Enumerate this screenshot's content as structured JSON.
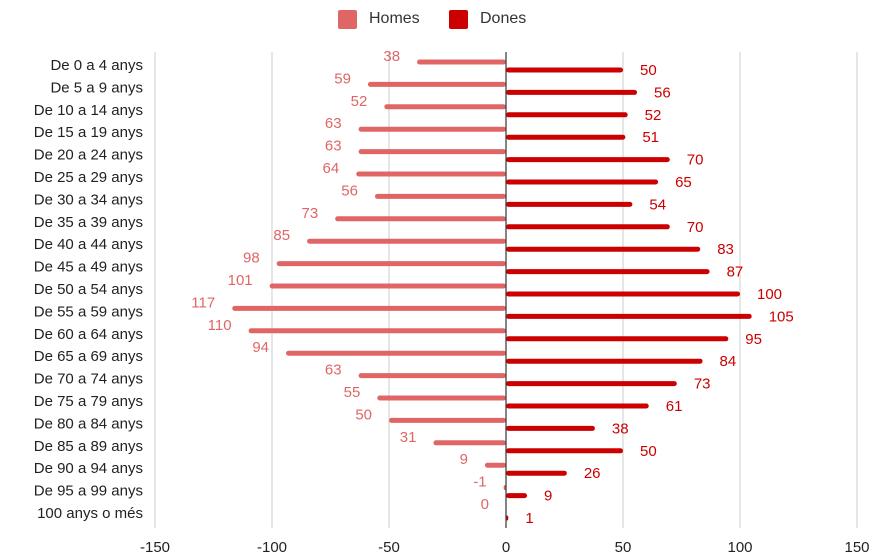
{
  "colors": {
    "homes": "#e06666",
    "dones": "#cc0000",
    "grid": "#cccccc",
    "axis": "#333333",
    "text": "#222222"
  },
  "chart_data": {
    "type": "bar",
    "orientation": "horizontal",
    "legend_position": "top",
    "grid": true,
    "xlim": [
      -150,
      150
    ],
    "xticks": [
      -150,
      -100,
      -50,
      0,
      50,
      100,
      150
    ],
    "categories": [
      "De 0 a 4 anys",
      "De 5 a 9 anys",
      "De 10 a 14 anys",
      "De 15 a 19 anys",
      "De 20 a 24 anys",
      "De 25 a 29 anys",
      "De 30 a 34 anys",
      "De 35 a 39 anys",
      "De 40 a 44 anys",
      "De 45 a 49 anys",
      "De 50 a 54 anys",
      "De 55 a 59 anys",
      "De 60 a 64 anys",
      "De 65 a 69 anys",
      "De 70 a 74 anys",
      "De 75 a 79 anys",
      "De 80 a 84 anys",
      "De 85 a 89 anys",
      "De 90 a 94 anys",
      "De 95 a 99 anys",
      "100 anys o més"
    ],
    "series": [
      {
        "name": "Homes",
        "values": [
          -38,
          -59,
          -52,
          -63,
          -63,
          -64,
          -56,
          -73,
          -85,
          -98,
          -101,
          -117,
          -110,
          -94,
          -63,
          -55,
          -50,
          -31,
          -9,
          -1,
          0
        ],
        "labels": [
          "38",
          "59",
          "52",
          "63",
          "63",
          "64",
          "56",
          "73",
          "85",
          "98",
          "101",
          "117",
          "110",
          "94",
          "63",
          "55",
          "50",
          "31",
          "9",
          "-1",
          "0"
        ]
      },
      {
        "name": "Dones",
        "values": [
          50,
          56,
          52,
          51,
          70,
          65,
          54,
          70,
          83,
          87,
          100,
          105,
          95,
          84,
          73,
          61,
          38,
          50,
          26,
          9,
          1
        ],
        "labels": [
          "50",
          "56",
          "52",
          "51",
          "70",
          "65",
          "54",
          "70",
          "83",
          "87",
          "100",
          "105",
          "95",
          "84",
          "73",
          "61",
          "38",
          "50",
          "26",
          "9",
          "1"
        ]
      }
    ]
  }
}
